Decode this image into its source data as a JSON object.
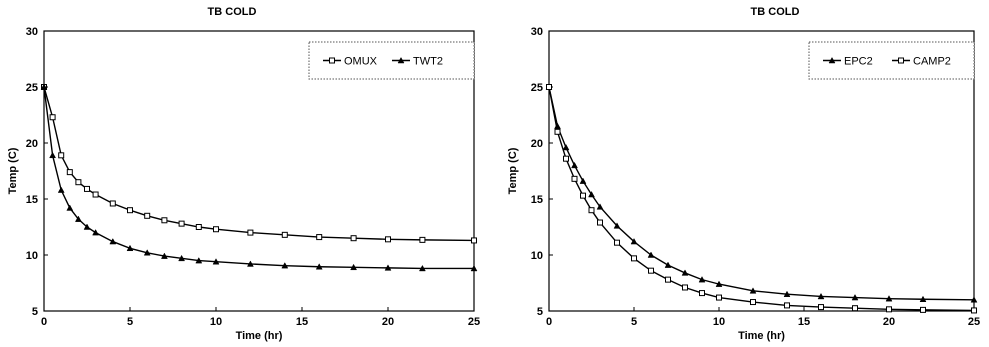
{
  "chart_data": [
    {
      "type": "line",
      "title": "TB COLD",
      "xlabel": "Time (hr)",
      "ylabel": "Temp (C)",
      "xlim": [
        0,
        25
      ],
      "ylim": [
        5,
        30
      ],
      "xticks": [
        0,
        5,
        10,
        15,
        20,
        25
      ],
      "yticks": [
        5,
        10,
        15,
        20,
        25,
        30
      ],
      "grid": false,
      "legend_position": "top-right",
      "x": [
        0,
        0.5,
        1,
        1.5,
        2,
        2.5,
        3,
        4,
        5,
        6,
        7,
        8,
        9,
        10,
        12,
        14,
        16,
        18,
        20,
        22,
        25
      ],
      "series": [
        {
          "name": "OMUX",
          "marker": "square",
          "values": [
            25,
            22.3,
            18.9,
            17.4,
            16.5,
            15.9,
            15.4,
            14.6,
            14.0,
            13.5,
            13.1,
            12.8,
            12.5,
            12.3,
            12.0,
            11.8,
            11.6,
            11.5,
            11.4,
            11.35,
            11.3
          ]
        },
        {
          "name": "TWT2",
          "marker": "triangle",
          "values": [
            25,
            18.9,
            15.8,
            14.2,
            13.2,
            12.5,
            12.0,
            11.2,
            10.6,
            10.2,
            9.9,
            9.7,
            9.5,
            9.4,
            9.2,
            9.05,
            8.95,
            8.9,
            8.85,
            8.8,
            8.8
          ]
        }
      ]
    },
    {
      "type": "line",
      "title": "TB COLD",
      "xlabel": "Time (hr)",
      "ylabel": "Temp (C)",
      "xlim": [
        0,
        25
      ],
      "ylim": [
        5,
        30
      ],
      "xticks": [
        0,
        5,
        10,
        15,
        20,
        25
      ],
      "yticks": [
        5,
        10,
        15,
        20,
        25,
        30
      ],
      "grid": false,
      "legend_position": "top-right",
      "x": [
        0,
        0.5,
        1,
        1.5,
        2,
        2.5,
        3,
        4,
        5,
        6,
        7,
        8,
        9,
        10,
        12,
        14,
        16,
        18,
        20,
        22,
        25
      ],
      "series": [
        {
          "name": "EPC2",
          "marker": "triangle",
          "values": [
            25,
            21.5,
            19.6,
            18.0,
            16.6,
            15.4,
            14.3,
            12.6,
            11.2,
            10.0,
            9.1,
            8.4,
            7.8,
            7.4,
            6.8,
            6.5,
            6.3,
            6.2,
            6.1,
            6.05,
            6.0
          ]
        },
        {
          "name": "CAMP2",
          "marker": "square",
          "values": [
            25,
            21.0,
            18.6,
            16.8,
            15.3,
            14.0,
            12.9,
            11.1,
            9.7,
            8.6,
            7.8,
            7.1,
            6.6,
            6.2,
            5.8,
            5.5,
            5.35,
            5.25,
            5.15,
            5.1,
            5.05
          ]
        }
      ]
    }
  ]
}
